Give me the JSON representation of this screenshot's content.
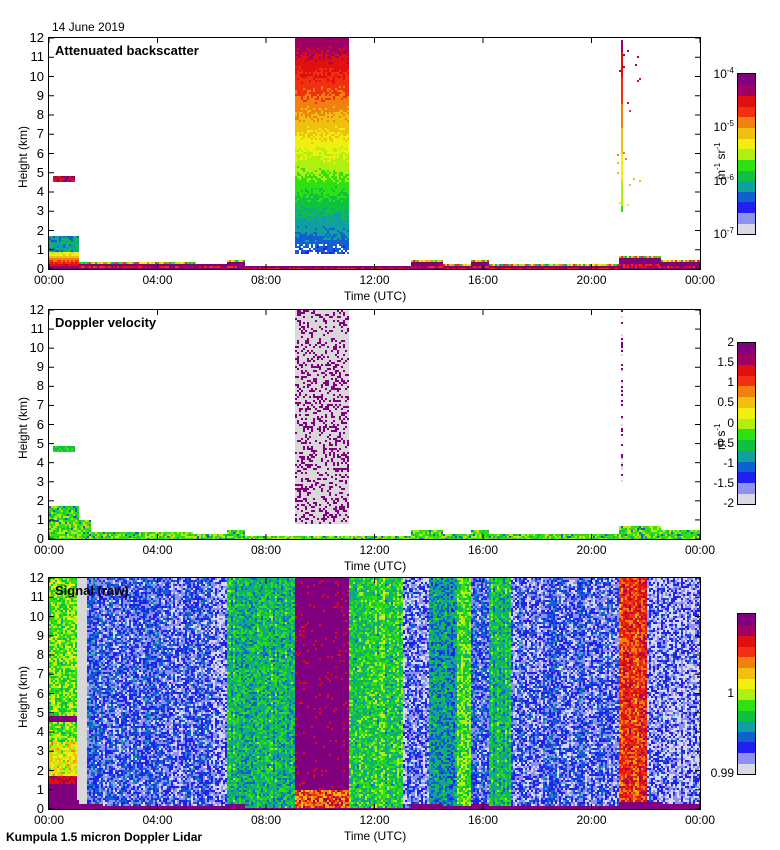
{
  "figure": {
    "date": "14 June 2019",
    "caption": "Kumpula 1.5 micron Doppler Lidar"
  },
  "chart_data": [
    {
      "type": "heatmap",
      "title": "Attenuated backscatter",
      "xlabel": "Time (UTC)",
      "ylabel": "Height (km)",
      "x_ticks": [
        "00:00",
        "04:00",
        "08:00",
        "12:00",
        "16:00",
        "20:00",
        "00:00"
      ],
      "xlim_hours": [
        0,
        24
      ],
      "y_ticks": [
        "0",
        "1",
        "2",
        "3",
        "4",
        "5",
        "6",
        "7",
        "8",
        "9",
        "10",
        "11",
        "12"
      ],
      "ylim": [
        0,
        12
      ],
      "colorbar": {
        "scale": "log",
        "range": [
          1e-07,
          0.0001
        ],
        "ticks": [
          {
            "base": "10",
            "exp": "-4"
          },
          {
            "base": "10",
            "exp": "-5"
          },
          {
            "base": "10",
            "exp": "-6"
          },
          {
            "base": "10",
            "exp": "-7"
          }
        ],
        "unit_base": "m",
        "unit_exp1": "-1",
        "unit_mid": " sr",
        "unit_exp2": "-1"
      },
      "features": [
        {
          "name": "boundary layer",
          "t_start": 0,
          "t_end": 24,
          "top_km": 0.5
        },
        {
          "name": "early residual layer",
          "t_start": 0,
          "t_end": 1.1,
          "top_km": 1.8
        },
        {
          "name": "elevated aerosol layer",
          "t_start": 0.1,
          "t_end": 0.9,
          "bottom_km": 4.6,
          "top_km": 4.9
        },
        {
          "name": "high cloud / precipitation column",
          "t_start": 9.0,
          "t_end": 11.0,
          "bottom_km": 0.8,
          "top_km": 12
        },
        {
          "name": "sparse column",
          "t_start": 21.0,
          "t_end": 21.7,
          "bottom_km": 3.0,
          "top_km": 12
        }
      ]
    },
    {
      "type": "heatmap",
      "title": "Doppler velocity",
      "xlabel": "Time (UTC)",
      "ylabel": "Height (km)",
      "x_ticks": [
        "00:00",
        "04:00",
        "08:00",
        "12:00",
        "16:00",
        "20:00",
        "00:00"
      ],
      "xlim_hours": [
        0,
        24
      ],
      "y_ticks": [
        "0",
        "1",
        "2",
        "3",
        "4",
        "5",
        "6",
        "7",
        "8",
        "9",
        "10",
        "11",
        "12"
      ],
      "ylim": [
        0,
        12
      ],
      "colorbar": {
        "scale": "linear",
        "range": [
          -2,
          2
        ],
        "ticks": [
          "2",
          "1.5",
          "1",
          "0.5",
          "0",
          "-0.5",
          "-1",
          "-1.5",
          "-2"
        ],
        "unit_base": "m s",
        "unit_exp1": "-1"
      }
    },
    {
      "type": "heatmap",
      "title": "Signal (raw)",
      "xlabel": "Time (UTC)",
      "ylabel": "Height (km)",
      "x_ticks": [
        "00:00",
        "04:00",
        "08:00",
        "12:00",
        "16:00",
        "20:00",
        "00:00"
      ],
      "xlim_hours": [
        0,
        24
      ],
      "y_ticks": [
        "0",
        "1",
        "2",
        "3",
        "4",
        "5",
        "6",
        "7",
        "8",
        "9",
        "10",
        "11",
        "12"
      ],
      "ylim": [
        0,
        12
      ],
      "colorbar": {
        "scale": "linear",
        "range": [
          0.99,
          1.01
        ],
        "ticks": [
          "1",
          "0.99"
        ]
      }
    }
  ],
  "colors": {
    "palette": [
      "#d8d8e8",
      "#9090f0",
      "#2020f0",
      "#1060d0",
      "#10a0a0",
      "#10c040",
      "#30e010",
      "#b0f010",
      "#f0f010",
      "#f0c010",
      "#f08010",
      "#f03010",
      "#e01010",
      "#a00060",
      "#800080"
    ],
    "missing": "#ffffff",
    "clutter": "#d8d8d8"
  }
}
